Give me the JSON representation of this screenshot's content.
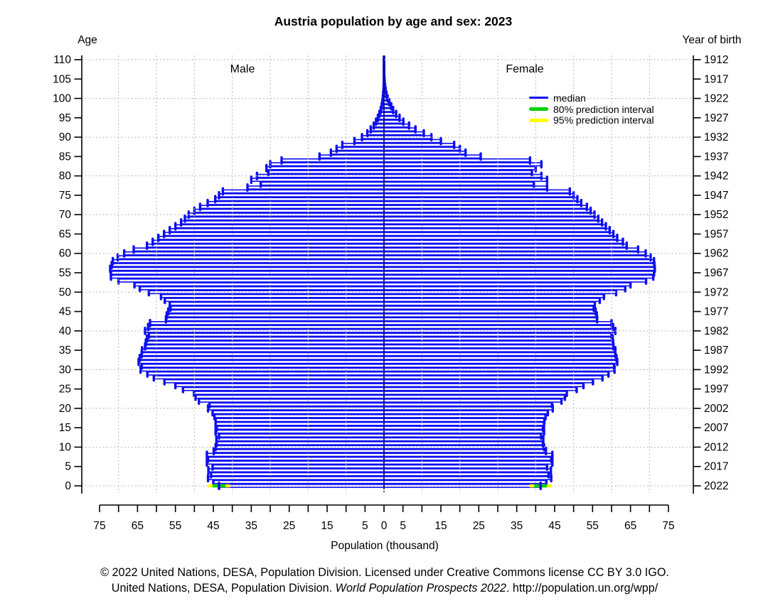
{
  "title": "Austria population by age and sex: 2023",
  "labels": {
    "age_axis": "Age",
    "year_axis": "Year of birth",
    "male": "Male",
    "female": "Female",
    "xlabel": "Population (thousand)"
  },
  "legend": [
    {
      "label": "median",
      "color": "#0d0df2",
      "thickness": 3
    },
    {
      "label": "80% prediction interval",
      "color": "#00d000",
      "thickness": 5
    },
    {
      "label": "95% prediction interval",
      "color": "#ffff00",
      "thickness": 5
    }
  ],
  "footer": {
    "line1": "© 2022 United Nations, DESA, Population Division. Licensed under Creative Commons license CC BY 3.0 IGO.",
    "line2_prefix": "United Nations, DESA, Population Division. ",
    "line2_italic": "World Population Prospects 2022",
    "line2_suffix": ". http://population.un.org/wpp/"
  },
  "colors": {
    "median": "#0d0df2",
    "pi80": "#00d000",
    "pi95": "#ffff00",
    "grid": "#b8b8b8",
    "axis": "#000000",
    "bar_fill": "#ffffff"
  },
  "chart_data": {
    "type": "bar",
    "subtype": "population-pyramid",
    "title": "Austria population by age and sex: 2023",
    "xlabel": "Population (thousand)",
    "x_axis": {
      "male_max": 75,
      "female_max": 75,
      "tick_step": 5,
      "grid_step": 10,
      "labeled_values": [
        0,
        5,
        15,
        25,
        35,
        45,
        55,
        65,
        75
      ]
    },
    "age_axis": {
      "min": 0,
      "max": 110,
      "tick_step": 5,
      "tick_labels": [
        0,
        5,
        10,
        15,
        20,
        25,
        30,
        35,
        40,
        45,
        50,
        55,
        60,
        65,
        70,
        75,
        80,
        85,
        90,
        95,
        100,
        105,
        110
      ]
    },
    "year_axis": {
      "tick_labels_by_age_asc": [
        2022,
        2017,
        2012,
        2007,
        2002,
        1997,
        1992,
        1987,
        1982,
        1977,
        1972,
        1967,
        1962,
        1957,
        1952,
        1947,
        1942,
        1937,
        1932,
        1927,
        1922,
        1917,
        1912
      ]
    },
    "unit": "thousand persons per single year of age",
    "series": [
      {
        "name": "Male",
        "side": "left",
        "values": [
          43.5,
          45.0,
          46.4,
          45.6,
          46.3,
          45.2,
          46.7,
          46.4,
          46.7,
          44.9,
          44.4,
          44.1,
          44.2,
          43.5,
          44.4,
          44.1,
          44.4,
          44.4,
          44.7,
          45.2,
          46.4,
          46.0,
          48.8,
          49.7,
          50.1,
          53.0,
          55.0,
          57.9,
          60.7,
          62.4,
          64.2,
          63.9,
          64.7,
          64.4,
          63.9,
          63.8,
          63.0,
          62.8,
          62.5,
          62.0,
          63.0,
          62.2,
          61.7,
          57.5,
          57.3,
          56.9,
          56.3,
          56.5,
          57.8,
          58.8,
          62.0,
          64.4,
          65.8,
          70.0,
          72.0,
          72.0,
          72.2,
          71.8,
          71.5,
          70.2,
          68.5,
          66.0,
          62.5,
          61.0,
          59.5,
          58.0,
          56.5,
          55.0,
          53.5,
          52.5,
          51.5,
          50.0,
          48.5,
          46.5,
          44.5,
          43.5,
          42.5,
          36.0,
          32.5,
          35.0,
          33.5,
          30.5,
          31.0,
          30.0,
          27.0,
          17.0,
          14.0,
          12.5,
          11.0,
          7.8,
          5.8,
          4.4,
          3.5,
          2.7,
          2.1,
          1.6,
          1.2,
          0.85,
          0.6,
          0.45,
          0.3,
          0.2,
          0.13,
          0.08,
          0.05,
          0.03,
          0.018,
          0.01,
          0.006,
          0.003,
          0.001
        ]
      },
      {
        "name": "Female",
        "side": "right",
        "values": [
          41.3,
          42.8,
          44.1,
          43.4,
          44.0,
          43.0,
          44.4,
          44.1,
          44.4,
          42.7,
          42.2,
          41.9,
          42.0,
          41.4,
          42.2,
          41.9,
          42.2,
          42.3,
          42.6,
          43.2,
          44.5,
          44.3,
          46.8,
          47.7,
          48.2,
          50.8,
          52.6,
          55.1,
          57.6,
          59.2,
          60.8,
          60.7,
          61.5,
          61.3,
          61.0,
          61.0,
          60.5,
          60.4,
          60.3,
          60.0,
          61.0,
          60.4,
          60.0,
          56.2,
          56.1,
          55.8,
          55.3,
          55.6,
          56.9,
          58.0,
          61.2,
          63.6,
          65.0,
          69.1,
          71.0,
          71.2,
          71.4,
          71.3,
          71.2,
          70.3,
          69.0,
          67.0,
          64.0,
          63.0,
          61.5,
          60.5,
          59.5,
          58.5,
          57.5,
          56.5,
          55.5,
          54.5,
          53.5,
          52.0,
          51.0,
          50.0,
          49.0,
          43.0,
          39.5,
          43.0,
          41.5,
          39.0,
          40.0,
          41.5,
          38.5,
          25.5,
          21.5,
          20.0,
          18.5,
          15.0,
          12.5,
          10.5,
          8.3,
          6.6,
          5.1,
          4.1,
          3.2,
          2.4,
          1.9,
          1.4,
          0.95,
          0.65,
          0.43,
          0.28,
          0.18,
          0.11,
          0.065,
          0.04,
          0.022,
          0.012,
          0.006
        ]
      }
    ],
    "age0_prediction_intervals": {
      "male": {
        "median": 43.5,
        "pi80": [
          41.8,
          45.2
        ],
        "pi95": [
          40.6,
          46.4
        ]
      },
      "female": {
        "median": 41.3,
        "pi80": [
          39.6,
          43.0
        ],
        "pi95": [
          38.4,
          44.2
        ]
      }
    }
  }
}
